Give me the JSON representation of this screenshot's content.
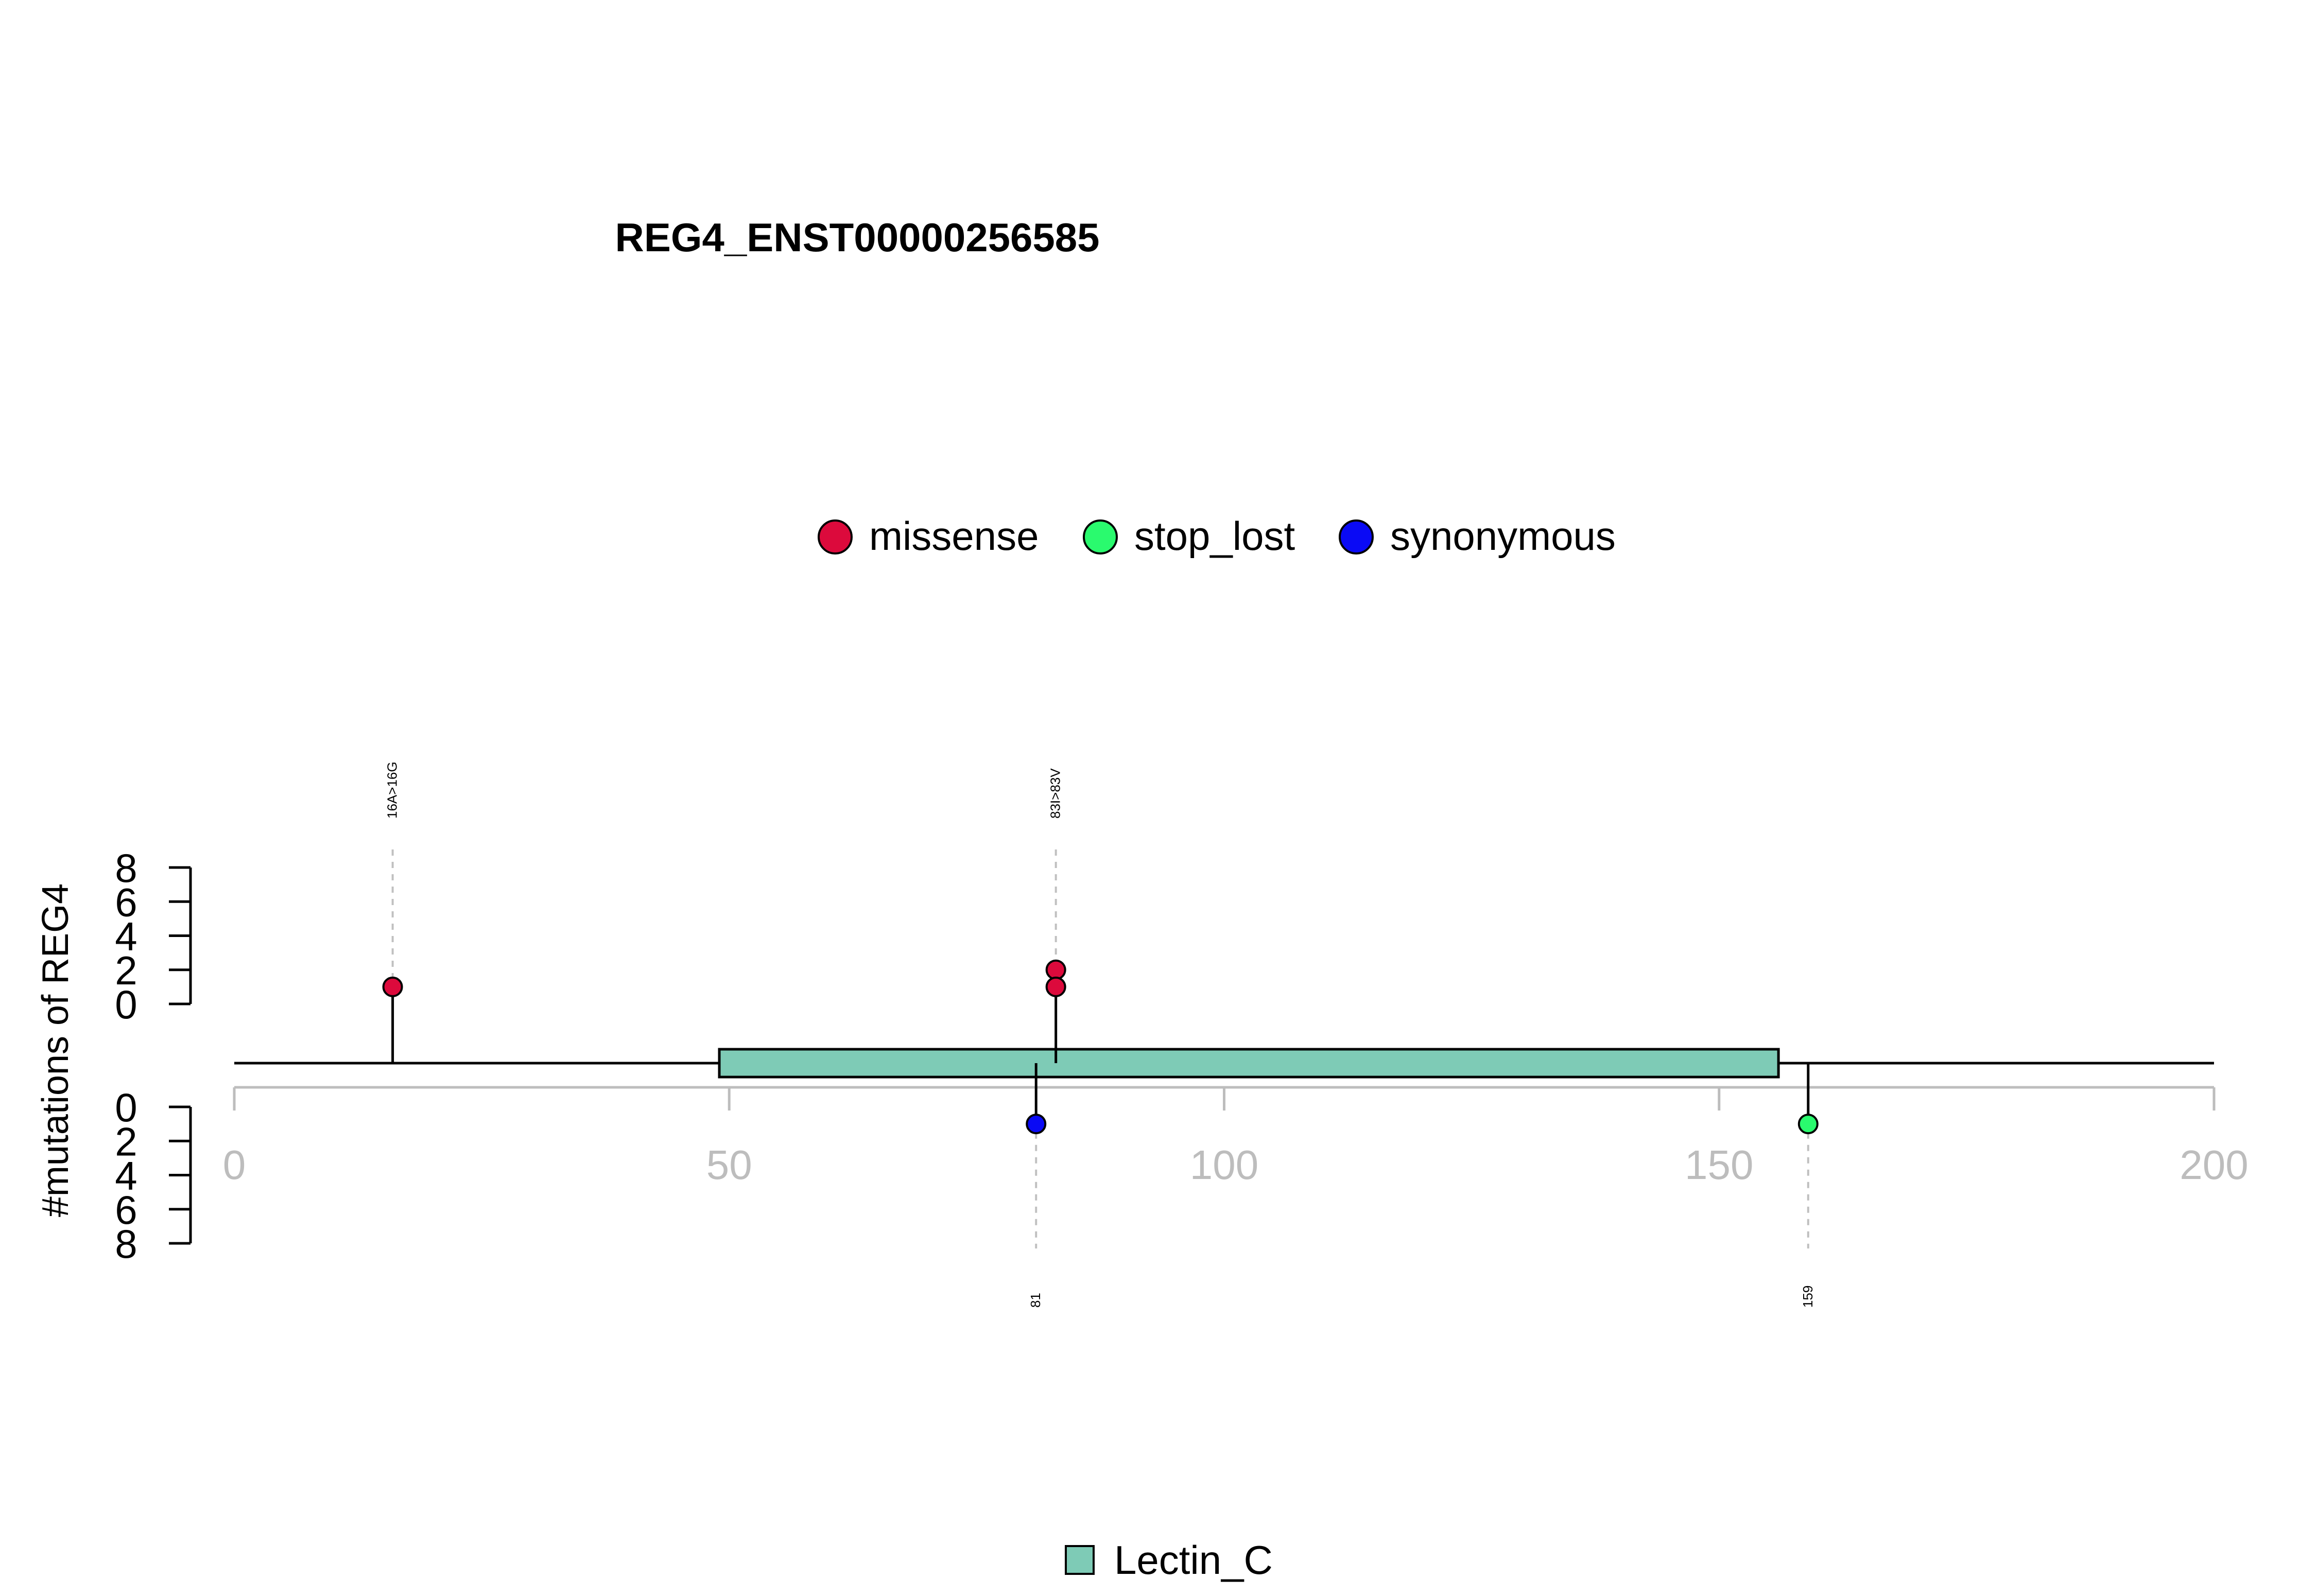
{
  "chart_data": {
    "type": "lollipop",
    "title": "REG4_ENST00000256585",
    "ylabel": "#mutations of REG4",
    "xlim": [
      0,
      200
    ],
    "x_ticks": [
      0,
      50,
      100,
      150,
      200
    ],
    "upper_y_ticks": [
      0,
      2,
      4,
      6,
      8
    ],
    "lower_y_ticks": [
      0,
      2,
      4,
      6,
      8
    ],
    "legend": [
      {
        "label": "missense",
        "color": "#dc0a3c"
      },
      {
        "label": "stop_lost",
        "color": "#2afa6e"
      },
      {
        "label": "synonymous",
        "color": "#0a0af5"
      }
    ],
    "domains": [
      {
        "name": "Lectin_C",
        "start": 49,
        "end": 156,
        "color": "#7ecbb6"
      }
    ],
    "domain_legend": [
      {
        "label": "Lectin_C",
        "color": "#7ecbb6"
      }
    ],
    "upper_mutations": [
      {
        "position": 16,
        "count": 1,
        "type": "missense",
        "label": "16A>16G"
      },
      {
        "position": 83,
        "count": 2,
        "type": "missense",
        "label": "83I>83V"
      }
    ],
    "lower_mutations": [
      {
        "position": 81,
        "count": 1,
        "type": "synonymous",
        "label": "81"
      },
      {
        "position": 159,
        "count": 1,
        "type": "stop_lost",
        "label": "159"
      }
    ]
  }
}
